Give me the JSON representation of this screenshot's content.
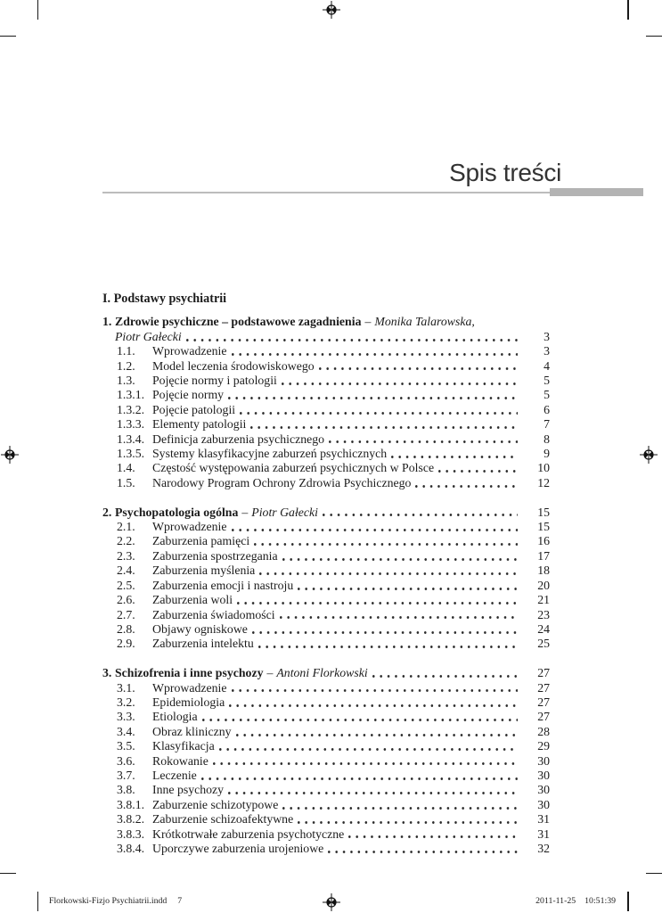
{
  "page": {
    "title": "Spis treści",
    "part_heading": "I. Podstawy psychiatrii",
    "author_separator": "–",
    "chapters": [
      {
        "number": "1.",
        "title": "Zdrowie psychiczne – podstawowe zagadnienia",
        "authors_line1": "Monika Talarowska,",
        "authors_line2": "Piotr Gałecki",
        "page": "3",
        "items": [
          {
            "number": "1.1.",
            "title": "Wprowadzenie",
            "page": "3"
          },
          {
            "number": "1.2.",
            "title": "Model leczenia środowiskowego",
            "page": "4"
          },
          {
            "number": "1.3.",
            "title": "Pojęcie normy i patologii",
            "page": "5"
          },
          {
            "number": "1.3.1.",
            "title": "Pojęcie normy",
            "page": "5"
          },
          {
            "number": "1.3.2.",
            "title": "Pojęcie patologii",
            "page": "6"
          },
          {
            "number": "1.3.3.",
            "title": "Elementy patologii",
            "page": "7"
          },
          {
            "number": "1.3.4.",
            "title": "Definicja zaburzenia psychicznego",
            "page": "8"
          },
          {
            "number": "1.3.5.",
            "title": "Systemy klasyfikacyjne zaburzeń psychicznych",
            "page": "9"
          },
          {
            "number": "1.4.",
            "title": "Częstość występowania zaburzeń psychicznych w Polsce",
            "page": "10"
          },
          {
            "number": "1.5.",
            "title": "Narodowy Program Ochrony Zdrowia Psychicznego",
            "page": "12"
          }
        ]
      },
      {
        "number": "2.",
        "title": "Psychopatologia ogólna",
        "authors": "Piotr Gałecki",
        "page": "15",
        "items": [
          {
            "number": "2.1.",
            "title": "Wprowadzenie",
            "page": "15"
          },
          {
            "number": "2.2.",
            "title": "Zaburzenia pamięci",
            "page": "16"
          },
          {
            "number": "2.3.",
            "title": "Zaburzenia spostrzegania",
            "page": "17"
          },
          {
            "number": "2.4.",
            "title": "Zaburzenia myślenia",
            "page": "18"
          },
          {
            "number": "2.5.",
            "title": "Zaburzenia emocji i nastroju",
            "page": "20"
          },
          {
            "number": "2.6.",
            "title": "Zaburzenia woli",
            "page": "21"
          },
          {
            "number": "2.7.",
            "title": "Zaburzenia świadomości",
            "page": "23"
          },
          {
            "number": "2.8.",
            "title": "Objawy ogniskowe",
            "page": "24"
          },
          {
            "number": "2.9.",
            "title": "Zaburzenia intelektu",
            "page": "25"
          }
        ]
      },
      {
        "number": "3.",
        "title": "Schizofrenia i inne psychozy",
        "authors": "Antoni Florkowski",
        "page": "27",
        "items": [
          {
            "number": "3.1.",
            "title": "Wprowadzenie",
            "page": "27"
          },
          {
            "number": "3.2.",
            "title": "Epidemiologia",
            "page": "27"
          },
          {
            "number": "3.3.",
            "title": "Etiologia",
            "page": "27"
          },
          {
            "number": "3.4.",
            "title": "Obraz kliniczny",
            "page": "28"
          },
          {
            "number": "3.5.",
            "title": "Klasyfikacja",
            "page": "29"
          },
          {
            "number": "3.6.",
            "title": "Rokowanie",
            "page": "30"
          },
          {
            "number": "3.7.",
            "title": "Leczenie",
            "page": "30"
          },
          {
            "number": "3.8.",
            "title": "Inne psychozy",
            "page": "30"
          },
          {
            "number": "3.8.1.",
            "title": "Zaburzenie schizotypowe",
            "page": "30"
          },
          {
            "number": "3.8.2.",
            "title": "Zaburzenie schizoafektywne",
            "page": "31"
          },
          {
            "number": "3.8.3.",
            "title": "Krótkotrwałe zaburzenia psychotyczne",
            "page": "31"
          },
          {
            "number": "3.8.4.",
            "title": "Uporczywe zaburzenia urojeniowe",
            "page": "32"
          }
        ]
      }
    ]
  },
  "footer": {
    "document_name": "Florkowski-Fizjo Psychiatrii.indd",
    "sheet_number": "7",
    "date": "2011-11-25",
    "time": "10:51:39"
  },
  "icons": {
    "registration_mark": "crosshair-target"
  },
  "colors": {
    "paper": "#ffffff",
    "text": "#1c1c1c",
    "rule_thin": "#bcbcbc",
    "rule_thick": "#b3b3b3"
  }
}
